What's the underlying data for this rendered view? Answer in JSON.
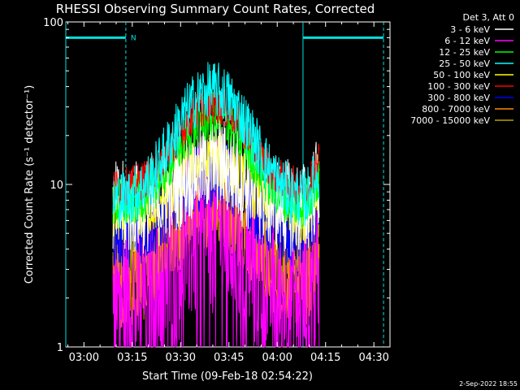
{
  "chart_data": {
    "type": "line",
    "title": "RHESSI Observing Summary Count Rates, Corrected",
    "xlabel": "Start Time (09-Feb-18 02:54:22)",
    "ylabel": "Corrected Count Rate (s⁻¹ detector⁻¹)",
    "x_ticks": [
      "03:00",
      "03:15",
      "03:30",
      "03:45",
      "04:00",
      "04:15",
      "04:30"
    ],
    "x_range": [
      "02:54:22",
      "04:35:00"
    ],
    "y_scale": "log",
    "y_range": [
      1,
      100
    ],
    "y_ticks": [
      "1",
      "10",
      "100"
    ],
    "legend_title": "Det 3, Att 0",
    "legend_position": "right-outside",
    "timestamp": "2-Sep-2022 18:55",
    "night_markers": {
      "label": "N",
      "color": "#00e0e0",
      "intervals": [
        [
          "02:54:22",
          "03:13:00"
        ],
        [
          "04:08:00",
          "04:33:00"
        ]
      ],
      "data_start": "03:09:00",
      "data_end": "04:13:00"
    },
    "series": [
      {
        "name": "3 - 6 keV",
        "color": "#ffffff",
        "base": 7,
        "peak": 13.5,
        "noise": 0.3
      },
      {
        "name": "6 - 12 keV",
        "color": "#ff00ff",
        "base": 2.0,
        "peak": 5.5,
        "noise": 0.55
      },
      {
        "name": "12 - 25 keV",
        "color": "#00ff00",
        "base": 7.5,
        "peak": 26,
        "noise": 0.16
      },
      {
        "name": "25 - 50 keV",
        "color": "#00ffff",
        "base": 8,
        "peak": 38,
        "noise": 0.18
      },
      {
        "name": "50 - 100 keV",
        "color": "#ffff00",
        "base": 6.5,
        "peak": 14,
        "noise": 0.18
      },
      {
        "name": "100 - 300 keV",
        "color": "#ff0000",
        "base": 9.5,
        "peak": 31,
        "noise": 0.12
      },
      {
        "name": "300 - 800 keV",
        "color": "#0000ff",
        "base": 5,
        "peak": 12,
        "noise": 0.22
      },
      {
        "name": "800 - 7000 keV",
        "color": "#ff8800",
        "base": 2.4,
        "peak": 8,
        "noise": 0.28
      },
      {
        "name": "7000 - 15000 keV",
        "color": "#b8a000",
        "base": 3.2,
        "peak": 7,
        "noise": 0.25
      }
    ]
  }
}
